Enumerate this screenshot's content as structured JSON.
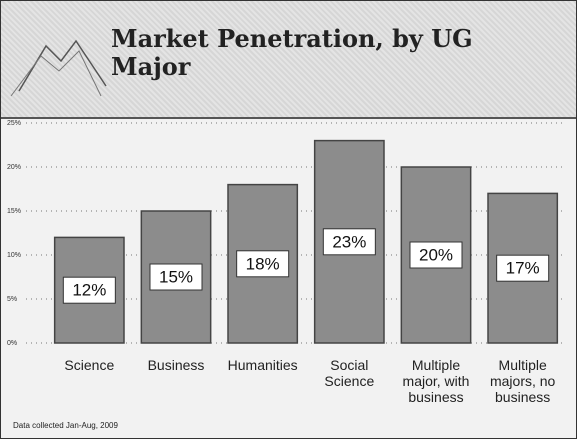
{
  "chart_data": {
    "type": "bar",
    "title": "Market Penetration, by UG Major",
    "categories": [
      "Science",
      "Business",
      "Humanities",
      "Social Science",
      "Multiple major, with business",
      "Multiple majors, no business"
    ],
    "values": [
      12,
      15,
      18,
      23,
      20,
      17
    ],
    "value_labels": [
      "12%",
      "15%",
      "18%",
      "23%",
      "20%",
      "17%"
    ],
    "color": "#8c8c8c",
    "ylim": [
      0,
      25
    ],
    "yticks": [
      {
        "value": 0,
        "label": "0%"
      },
      {
        "value": 5,
        "label": "5%"
      },
      {
        "value": 10,
        "label": "10%"
      },
      {
        "value": 15,
        "label": "15%"
      },
      {
        "value": 20,
        "label": "20%"
      },
      {
        "value": 25,
        "label": "25%"
      }
    ],
    "grid": true,
    "note": "Data collected Jan-Aug, 2009"
  }
}
